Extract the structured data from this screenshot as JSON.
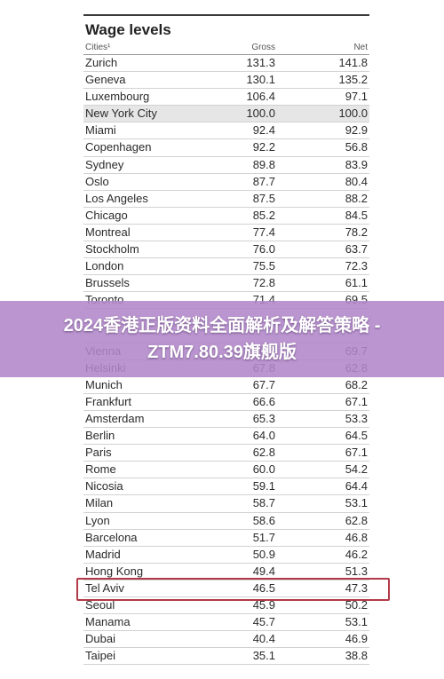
{
  "table": {
    "title": "Wage levels",
    "headers": {
      "city": "Cities¹",
      "gross": "Gross",
      "net": "Net"
    },
    "rows": [
      {
        "city": "Zurich",
        "gross": "131.3",
        "net": "141.8"
      },
      {
        "city": "Geneva",
        "gross": "130.1",
        "net": "135.2"
      },
      {
        "city": "Luxembourg",
        "gross": "106.4",
        "net": "97.1"
      },
      {
        "city": "New York City",
        "gross": "100.0",
        "net": "100.0",
        "reference": true
      },
      {
        "city": "Miami",
        "gross": "92.4",
        "net": "92.9"
      },
      {
        "city": "Copenhagen",
        "gross": "92.2",
        "net": "56.8"
      },
      {
        "city": "Sydney",
        "gross": "89.8",
        "net": "83.9"
      },
      {
        "city": "Oslo",
        "gross": "87.7",
        "net": "80.4"
      },
      {
        "city": "Los Angeles",
        "gross": "87.5",
        "net": "88.2"
      },
      {
        "city": "Chicago",
        "gross": "85.2",
        "net": "84.5"
      },
      {
        "city": "Montreal",
        "gross": "77.4",
        "net": "78.2"
      },
      {
        "city": "Stockholm",
        "gross": "76.0",
        "net": "63.7"
      },
      {
        "city": "London",
        "gross": "75.5",
        "net": "72.3"
      },
      {
        "city": "Brussels",
        "gross": "72.8",
        "net": "61.1"
      },
      {
        "city": "Toronto",
        "gross": "71.4",
        "net": "69.5"
      },
      {
        "city": "",
        "gross": "",
        "net": ""
      },
      {
        "city": "",
        "gross": "",
        "net": ""
      },
      {
        "city": "Vienna",
        "gross": "68.5",
        "net": "69.7"
      },
      {
        "city": "Helsinki",
        "gross": "67.8",
        "net": "62.8"
      },
      {
        "city": "Munich",
        "gross": "67.7",
        "net": "68.2"
      },
      {
        "city": "Frankfurt",
        "gross": "66.6",
        "net": "67.1"
      },
      {
        "city": "Amsterdam",
        "gross": "65.3",
        "net": "53.3"
      },
      {
        "city": "Berlin",
        "gross": "64.0",
        "net": "64.5"
      },
      {
        "city": "Paris",
        "gross": "62.8",
        "net": "67.1"
      },
      {
        "city": "Rome",
        "gross": "60.0",
        "net": "54.2"
      },
      {
        "city": "Nicosia",
        "gross": "59.1",
        "net": "64.4"
      },
      {
        "city": "Milan",
        "gross": "58.7",
        "net": "53.1"
      },
      {
        "city": "Lyon",
        "gross": "58.6",
        "net": "62.8"
      },
      {
        "city": "Barcelona",
        "gross": "51.7",
        "net": "46.8"
      },
      {
        "city": "Madrid",
        "gross": "50.9",
        "net": "46.2"
      },
      {
        "city": "Hong Kong",
        "gross": "49.4",
        "net": "51.3",
        "highlighted": true
      },
      {
        "city": "Tel Aviv",
        "gross": "46.5",
        "net": "47.3"
      },
      {
        "city": "Seoul",
        "gross": "45.9",
        "net": "50.2"
      },
      {
        "city": "Manama",
        "gross": "45.7",
        "net": "53.1"
      },
      {
        "city": "Dubai",
        "gross": "40.4",
        "net": "46.9"
      },
      {
        "city": "Taipei",
        "gross": "35.1",
        "net": "38.8"
      }
    ]
  },
  "banner": {
    "text": "2024香港正版资料全面解析及解答策略 - ZTM7.80.39旗舰版"
  },
  "colors": {
    "banner_bg": "#b086c8",
    "highlight_border": "#b23a48",
    "reference_row_bg": "#e6e6e6"
  }
}
